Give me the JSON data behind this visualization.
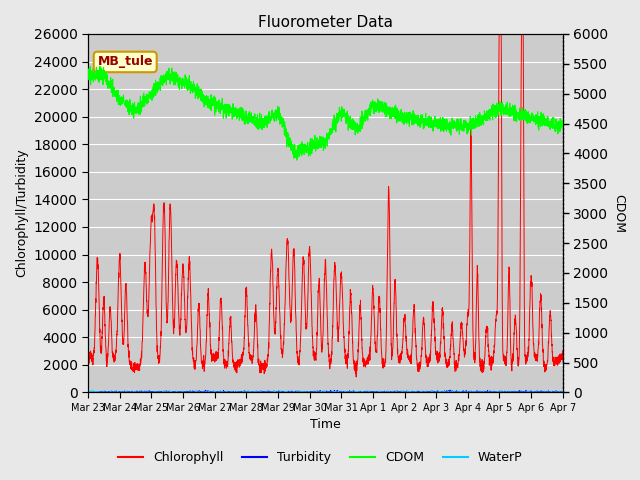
{
  "title": "Fluorometer Data",
  "xlabel": "Time",
  "ylabel_left": "Chlorophyll/Turbidity",
  "ylabel_right": "CDOM",
  "station_label": "MB_tule",
  "left_ylim": [
    0,
    26000
  ],
  "right_ylim": [
    0,
    6000
  ],
  "left_yticks": [
    0,
    2000,
    4000,
    6000,
    8000,
    10000,
    12000,
    14000,
    16000,
    18000,
    20000,
    22000,
    24000,
    26000
  ],
  "right_yticks": [
    0,
    500,
    1000,
    1500,
    2000,
    2500,
    3000,
    3500,
    4000,
    4500,
    5000,
    5500,
    6000
  ],
  "xtick_labels": [
    "Mar 23",
    "Mar 24",
    "Mar 25",
    "Mar 26",
    "Mar 27",
    "Mar 28",
    "Mar 29",
    "Mar 30",
    "Mar 31",
    "Apr 1",
    "Apr 2",
    "Apr 3",
    "Apr 4",
    "Apr 5",
    "Apr 6",
    "Apr 7"
  ],
  "bg_color": "#e8e8e8",
  "plot_bg_color": "#cccccc",
  "grid_color": "white",
  "chlorophyll_color": "#ff0000",
  "turbidity_color": "#0000ff",
  "cdom_color": "#00ff00",
  "waterp_color": "#00ccff",
  "legend_items": [
    "Chlorophyll",
    "Turbidity",
    "CDOM",
    "WaterP"
  ]
}
